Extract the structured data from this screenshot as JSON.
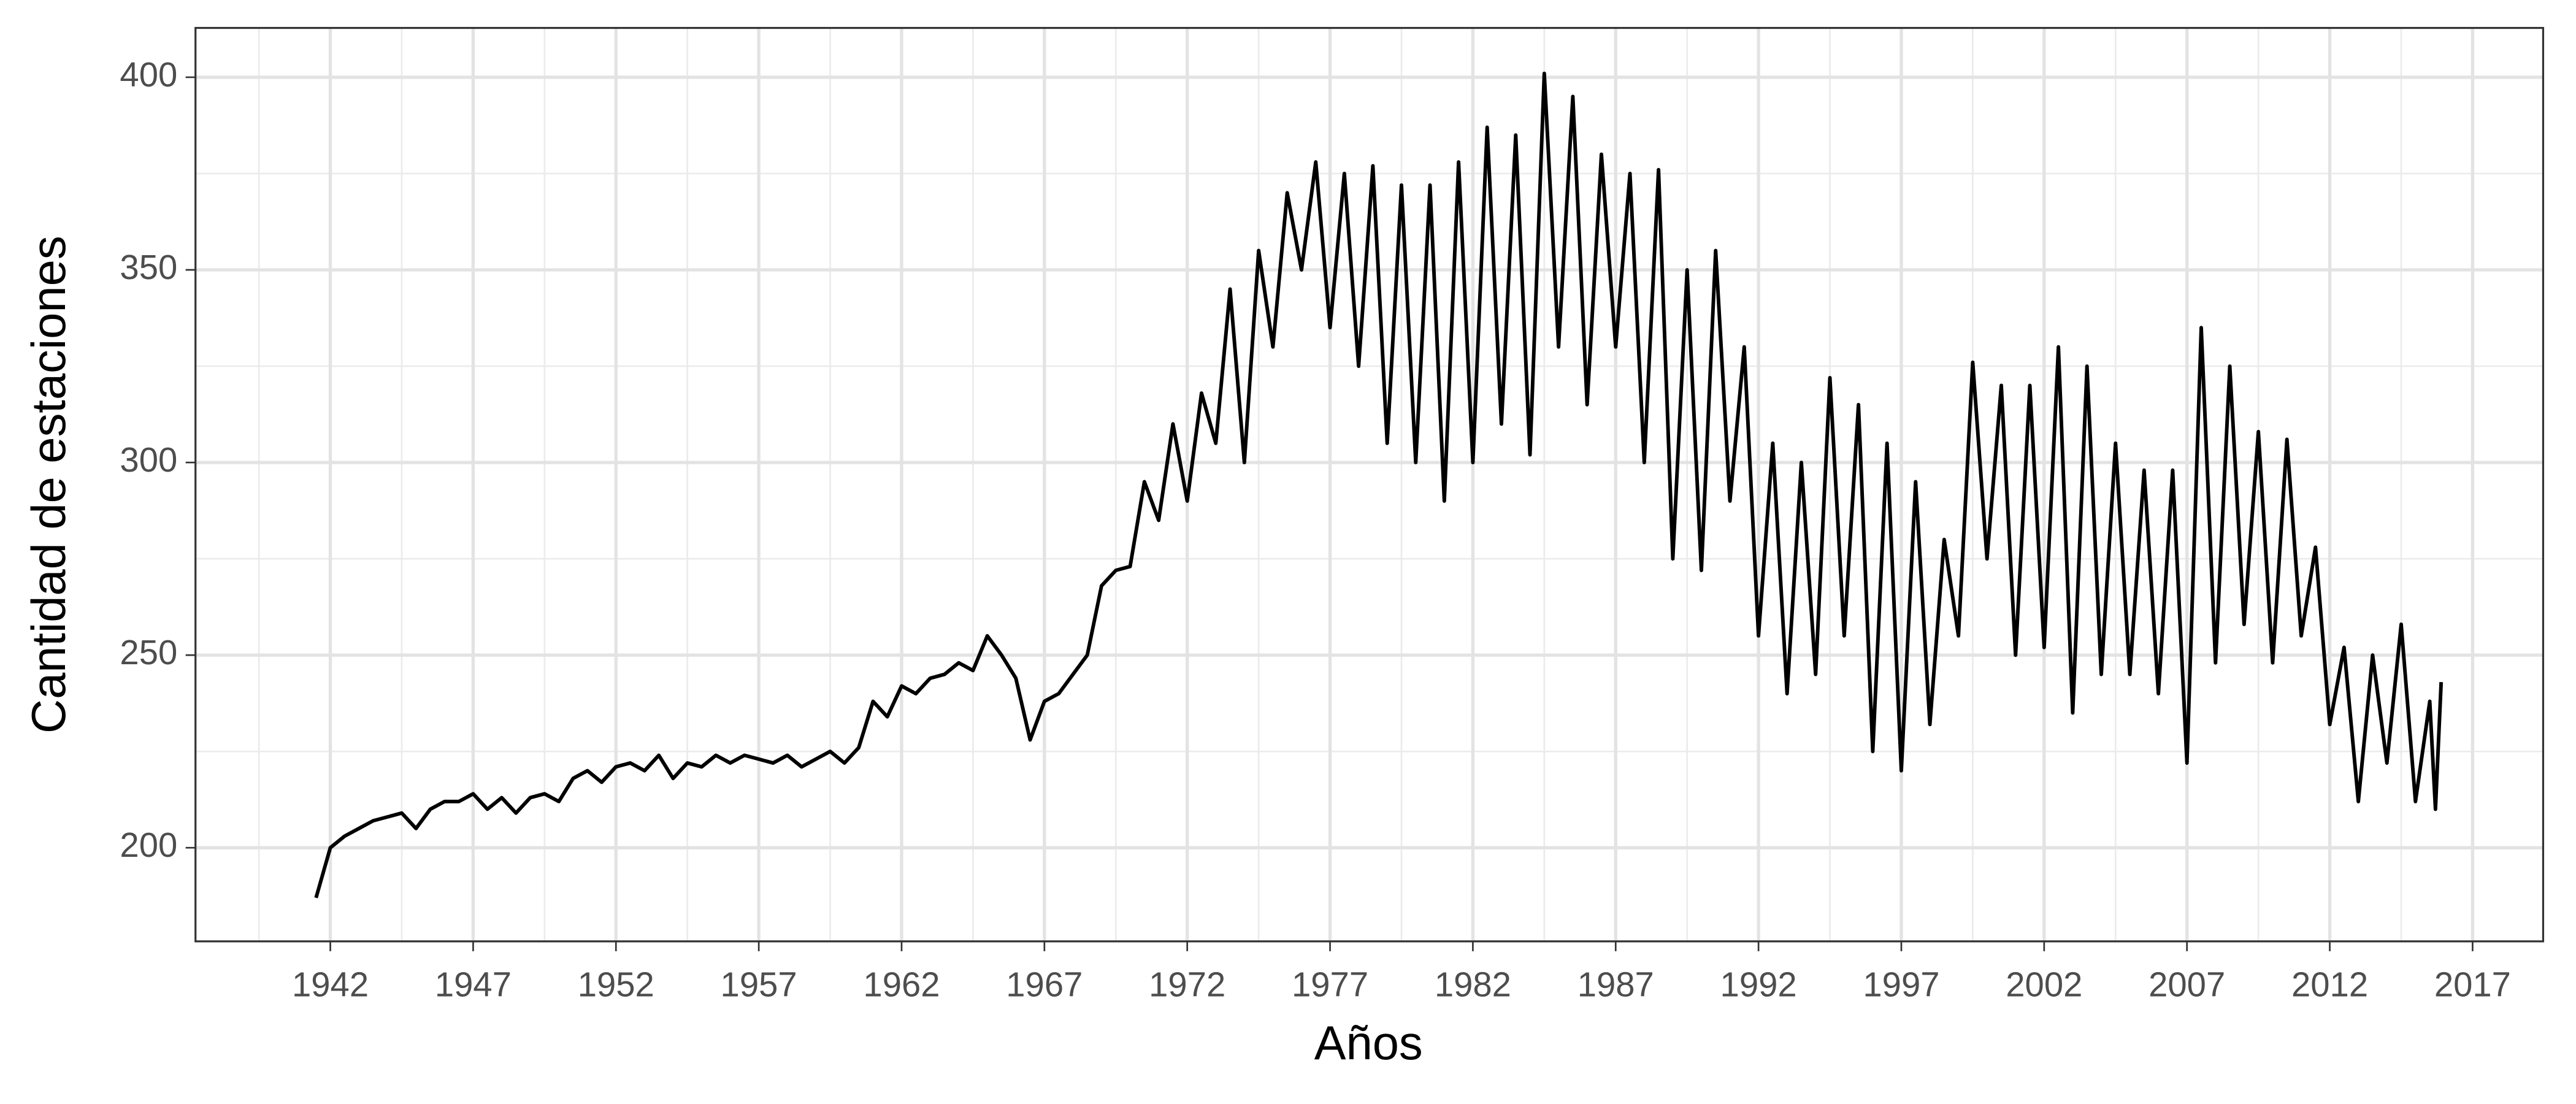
{
  "chart_data": {
    "type": "line",
    "x_label": "Años",
    "y_label": "Cantidad de estaciones",
    "xlim": [
      1937.28,
      2019.47
    ],
    "ylim": [
      175.7,
      412.8
    ],
    "xticks": [
      1942,
      1947,
      1952,
      1957,
      1962,
      1967,
      1972,
      1977,
      1982,
      1987,
      1992,
      1997,
      2002,
      2007,
      2012,
      2017
    ],
    "x_minor_ticks": [
      1939.5,
      1944.5,
      1949.5,
      1954.5,
      1959.5,
      1964.5,
      1969.5,
      1974.5,
      1979.5,
      1984.5,
      1989.5,
      1994.5,
      1999.5,
      2004.5,
      2009.5,
      2014.5,
      2019.5
    ],
    "yticks": [
      200,
      250,
      300,
      350,
      400
    ],
    "y_minor_ticks": [
      225,
      275,
      325,
      375
    ],
    "grid": true,
    "x": [
      1941.5,
      1942,
      1942.5,
      1943,
      1943.5,
      1944,
      1944.5,
      1945,
      1945.5,
      1946,
      1946.5,
      1947,
      1947.5,
      1948,
      1948.5,
      1949,
      1949.5,
      1950,
      1950.5,
      1951,
      1951.5,
      1952,
      1952.5,
      1953,
      1953.5,
      1954,
      1954.5,
      1955,
      1955.5,
      1956,
      1956.5,
      1957,
      1957.5,
      1958,
      1958.5,
      1959,
      1959.5,
      1960,
      1960.5,
      1961,
      1961.5,
      1962,
      1962.5,
      1963,
      1963.5,
      1964,
      1964.5,
      1965,
      1965.5,
      1966,
      1966.5,
      1967,
      1967.5,
      1968,
      1968.5,
      1969,
      1969.5,
      1970,
      1970.5,
      1971,
      1971.5,
      1972,
      1972.5,
      1973,
      1973.5,
      1974,
      1974.5,
      1975,
      1975.5,
      1976,
      1976.5,
      1977,
      1977.5,
      1978,
      1978.5,
      1979,
      1979.5,
      1980,
      1980.5,
      1981,
      1981.5,
      1982,
      1982.5,
      1983,
      1983.5,
      1984,
      1984.5,
      1985,
      1985.5,
      1986,
      1986.5,
      1987,
      1987.5,
      1988,
      1988.5,
      1989,
      1989.5,
      1990,
      1990.5,
      1991,
      1991.5,
      1992,
      1992.5,
      1993,
      1993.5,
      1994,
      1994.5,
      1995,
      1995.5,
      1996,
      1996.5,
      1997,
      1997.5,
      1998,
      1998.5,
      1999,
      1999.5,
      2000,
      2000.5,
      2001,
      2001.5,
      2002,
      2002.5,
      2003,
      2003.5,
      2004,
      2004.5,
      2005,
      2005.5,
      2006,
      2006.5,
      2007,
      2007.5,
      2008,
      2008.5,
      2009,
      2009.5,
      2010,
      2010.5,
      2011,
      2011.5,
      2012,
      2012.5,
      2013,
      2013.5,
      2014,
      2014.5,
      2015,
      2015.5,
      2015.7,
      2015.9
    ],
    "series": [
      {
        "color": "#000000",
        "values": [
          187,
          200,
          203,
          205,
          207,
          208,
          209,
          205,
          210,
          212,
          212,
          214,
          210,
          213,
          209,
          213,
          214,
          212,
          218,
          220,
          217,
          221,
          222,
          220,
          224,
          218,
          222,
          221,
          224,
          222,
          224,
          223,
          222,
          224,
          221,
          223,
          225,
          222,
          226,
          238,
          234,
          242,
          240,
          244,
          245,
          248,
          246,
          255,
          250,
          244,
          228,
          238,
          240,
          245,
          250,
          268,
          272,
          273,
          295,
          285,
          310,
          290,
          318,
          305,
          345,
          300,
          355,
          330,
          370,
          350,
          378,
          335,
          375,
          325,
          377,
          305,
          372,
          300,
          372,
          290,
          378,
          300,
          387,
          310,
          385,
          302,
          401,
          330,
          395,
          315,
          380,
          330,
          375,
          300,
          376,
          275,
          350,
          272,
          355,
          290,
          330,
          255,
          305,
          240,
          300,
          245,
          322,
          255,
          315,
          225,
          305,
          220,
          295,
          232,
          280,
          255,
          326,
          275,
          320,
          250,
          320,
          252,
          330,
          235,
          325,
          245,
          305,
          245,
          298,
          240,
          298,
          222,
          335,
          248,
          325,
          258,
          308,
          248,
          306,
          255,
          278,
          232,
          252,
          212,
          250,
          222,
          258,
          212,
          238,
          210,
          243
        ]
      }
    ]
  }
}
